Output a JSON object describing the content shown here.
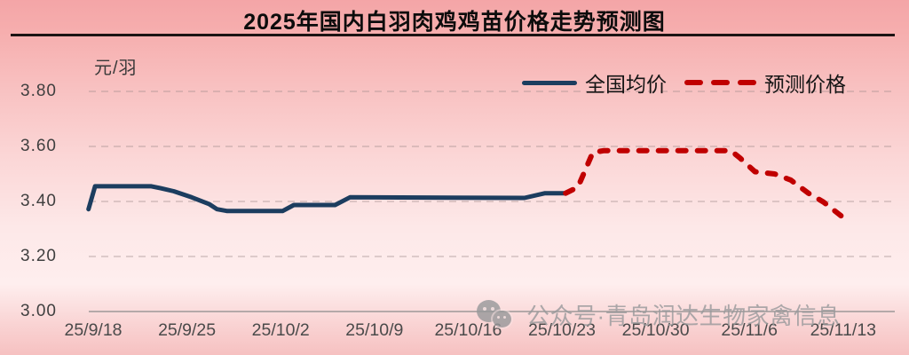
{
  "title": "2025年国内白羽肉鸡鸡苗价格走势预测图",
  "unit_label": "元/羽",
  "watermark": {
    "icon": "wechat-icon",
    "text": "公众号·青岛润达生物家禽信息"
  },
  "colors": {
    "actual_line": "#1c3d5f",
    "forecast_line": "#c00000",
    "grid": "#a18c8c",
    "baseline": "#8d8d8d",
    "title_rule": "#1b1313"
  },
  "chart_data": {
    "type": "line",
    "title": "2025年国内白羽肉鸡鸡苗价格走势预测图",
    "ylabel": "元/羽",
    "xlabel": "",
    "ylim": [
      3.0,
      3.8
    ],
    "grid": "dashed horizontal gridlines, solid baseline at 3.00",
    "legend_position": "top right above plot",
    "categories": [
      "25/9/18",
      "25/9/25",
      "25/10/2",
      "25/10/9",
      "25/10/16",
      "25/10/23",
      "25/10/30",
      "25/11/6",
      "25/11/13"
    ],
    "x_tick_labels": [
      "25/9/18",
      "25/9/25",
      "25/10/2",
      "25/10/9",
      "25/10/16",
      "25/10/23",
      "25/10/30",
      "25/11/6",
      "25/11/13"
    ],
    "y_ticks": [
      {
        "label": "3.80",
        "value": 3.8
      },
      {
        "label": "3.60",
        "value": 3.6
      },
      {
        "label": "3.40",
        "value": 3.4
      },
      {
        "label": "3.20",
        "value": 3.2
      },
      {
        "label": "3.00",
        "value": 3.0
      }
    ],
    "series": [
      {
        "name": "全国均价",
        "style": "solid",
        "color": "#1c3d5f",
        "values": [
          3.45,
          3.42,
          3.37,
          3.41,
          3.41,
          3.43,
          null,
          null,
          null
        ],
        "detail_points": [
          [
            -0.05,
            3.372
          ],
          [
            0.02,
            3.455
          ],
          [
            0.62,
            3.455
          ],
          [
            0.72,
            3.448
          ],
          [
            0.86,
            3.437
          ],
          [
            1.05,
            3.415
          ],
          [
            1.24,
            3.39
          ],
          [
            1.32,
            3.372
          ],
          [
            1.43,
            3.365
          ],
          [
            2.02,
            3.365
          ],
          [
            2.14,
            3.387
          ],
          [
            2.58,
            3.387
          ],
          [
            2.74,
            3.415
          ],
          [
            4.6,
            3.413
          ],
          [
            4.82,
            3.43
          ],
          [
            5.04,
            3.43
          ]
        ]
      },
      {
        "name": "预测价格",
        "style": "dashed",
        "color": "#c00000",
        "values": [
          null,
          null,
          null,
          null,
          null,
          3.43,
          3.58,
          3.52,
          3.34
        ],
        "detail_points": [
          [
            5.04,
            3.43
          ],
          [
            5.17,
            3.452
          ],
          [
            5.33,
            3.578
          ],
          [
            5.45,
            3.585
          ],
          [
            6.8,
            3.585
          ],
          [
            6.9,
            3.558
          ],
          [
            7.06,
            3.508
          ],
          [
            7.27,
            3.5
          ],
          [
            7.44,
            3.478
          ],
          [
            7.63,
            3.43
          ],
          [
            7.79,
            3.398
          ],
          [
            8.0,
            3.342
          ]
        ]
      }
    ]
  }
}
